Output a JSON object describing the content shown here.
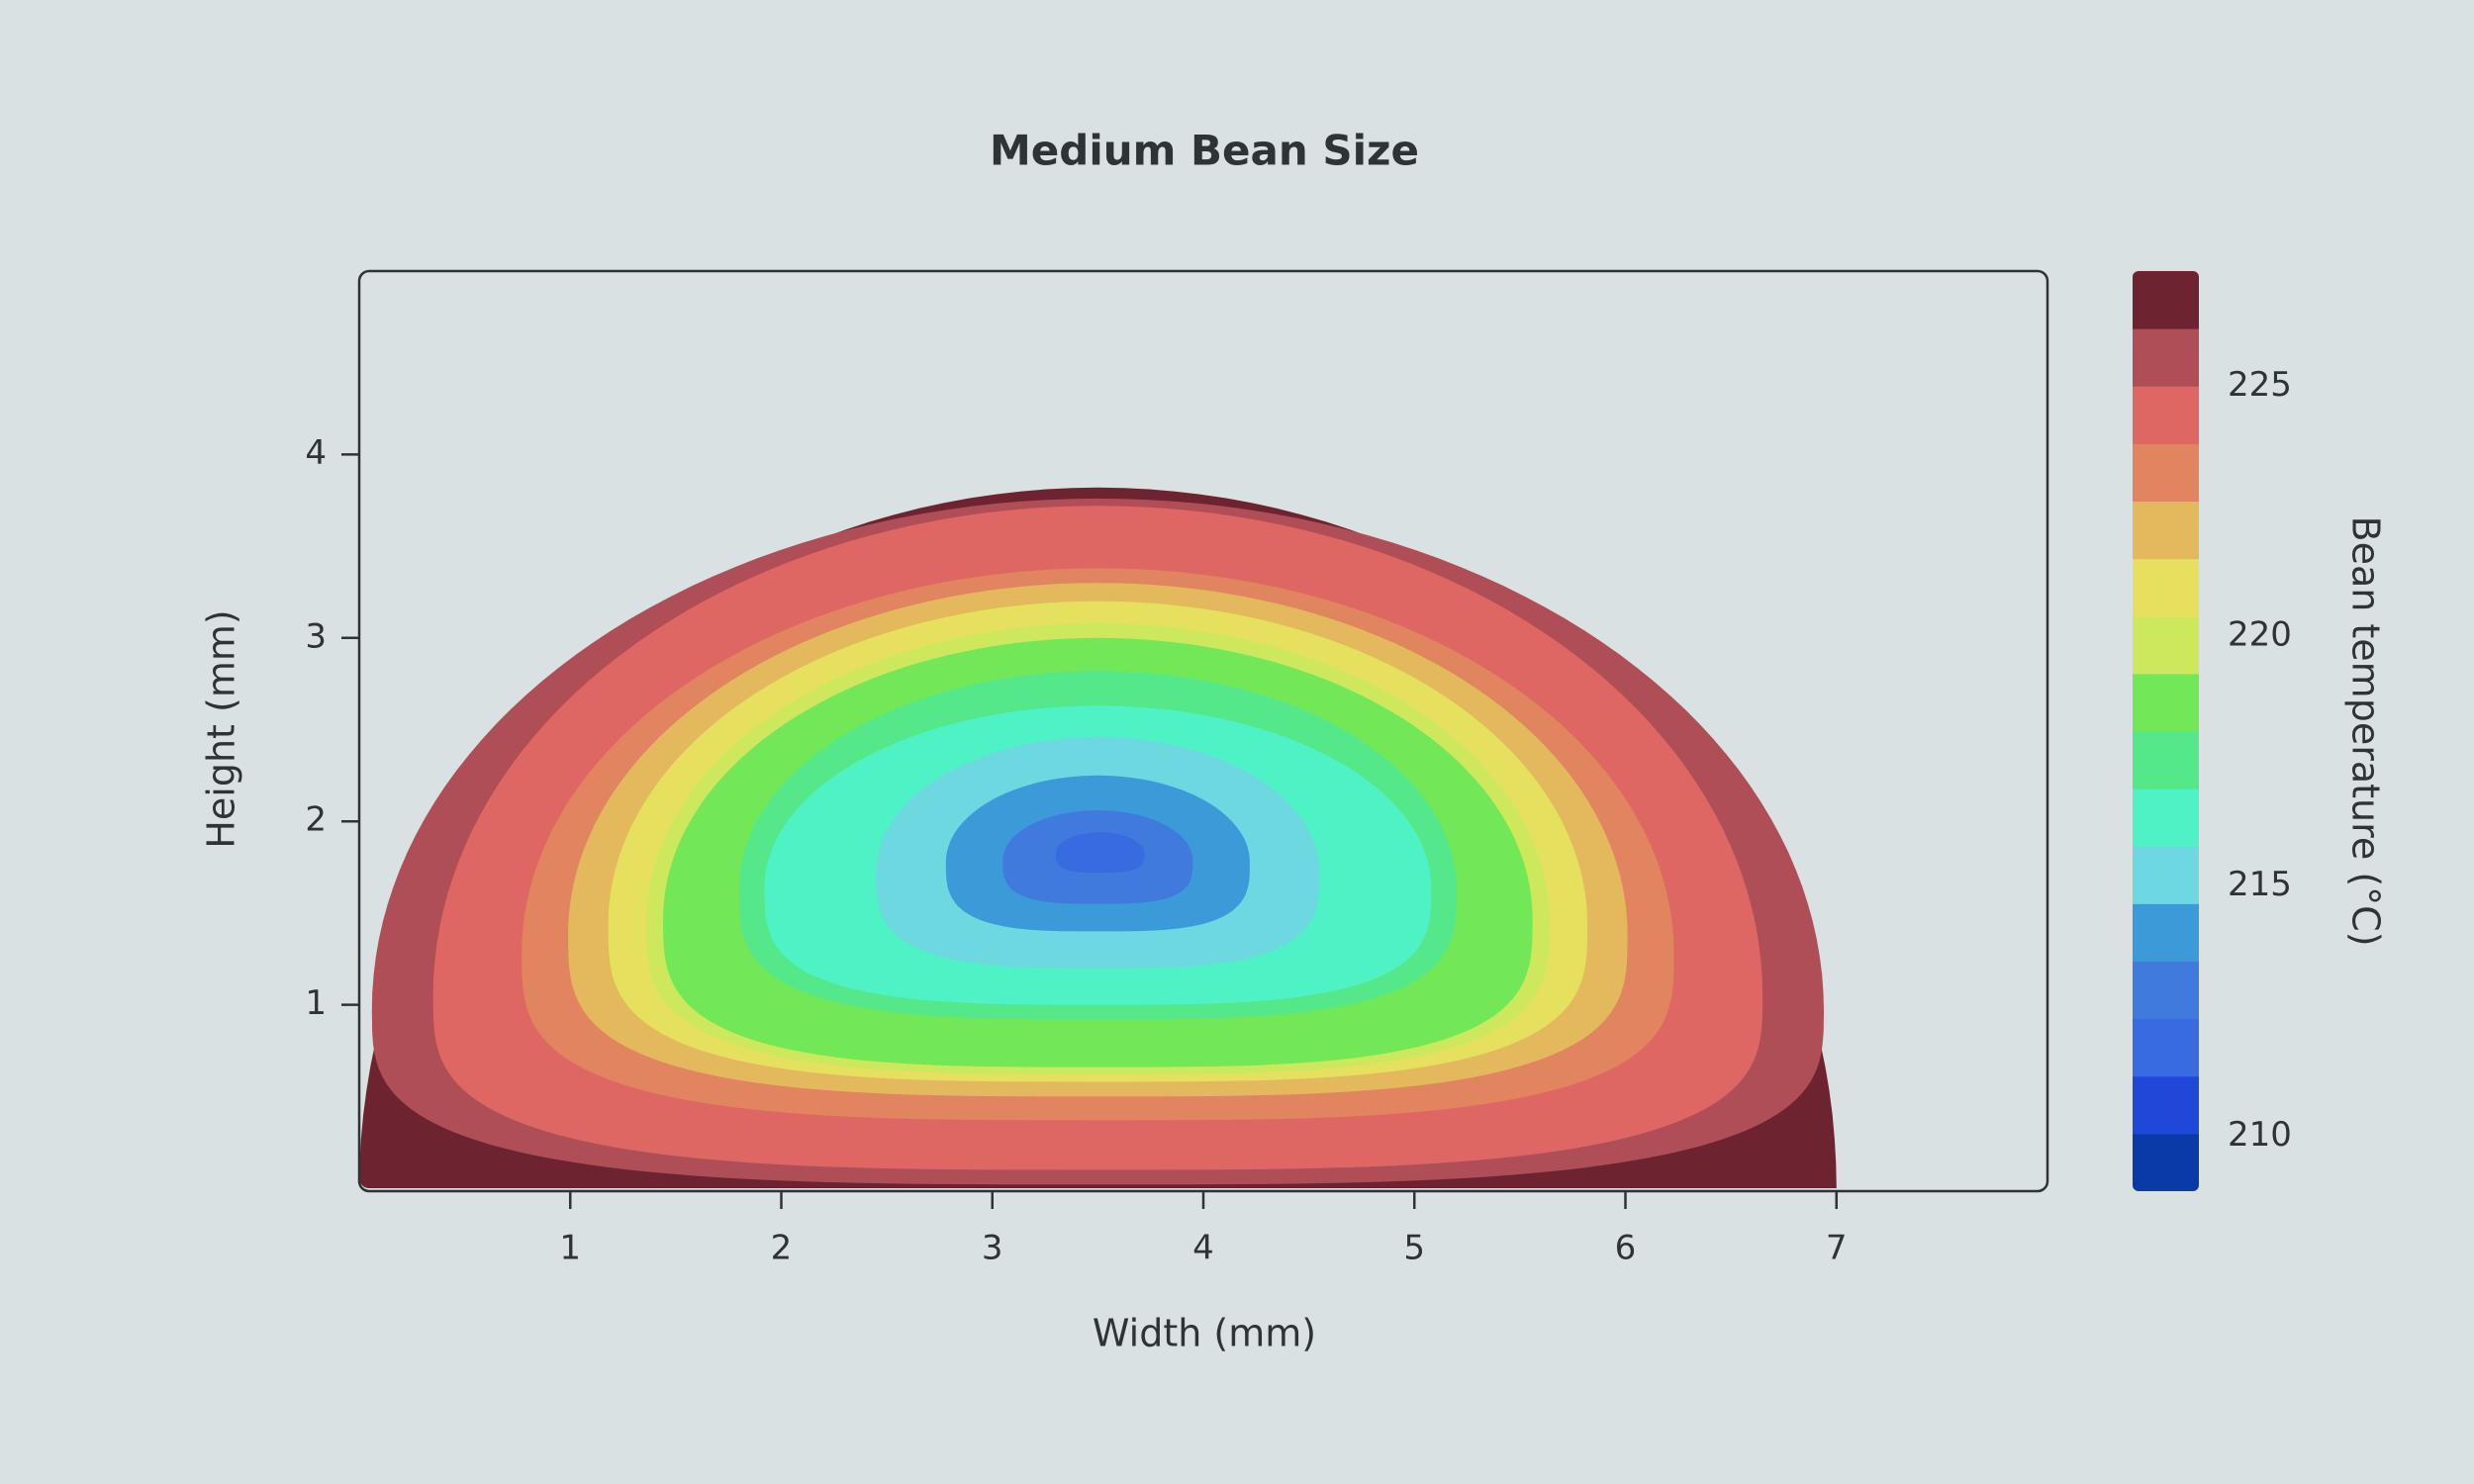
{
  "chart_data": {
    "type": "contour",
    "title": "Medium Bean Size",
    "xlabel": "Width (mm)",
    "ylabel": "Height (mm)",
    "xlim": [
      0,
      8
    ],
    "ylim": [
      0,
      5
    ],
    "xticks": [
      1,
      2,
      3,
      4,
      5,
      6,
      7
    ],
    "yticks": [
      1,
      2,
      3,
      4
    ],
    "colorbar": {
      "label": "Bean temperature (°C)",
      "levels": [
        208.9,
        210.05,
        211.2,
        212.35,
        213.5,
        214.65,
        215.8,
        216.95,
        218.1,
        219.25,
        220.4,
        221.55,
        222.7,
        223.85,
        225.0,
        226.15,
        227.3
      ],
      "colors": [
        "#0a3aa8",
        "#2048d8",
        "#386be0",
        "#3f7adc",
        "#3c9ad8",
        "#6dd8e0",
        "#4ff2c4",
        "#55e88a",
        "#72e858",
        "#cde85c",
        "#e6e05f",
        "#e4b95e",
        "#e0855f",
        "#df6763",
        "#b04e58",
        "#6e2430"
      ],
      "ticks": [
        210,
        215,
        220,
        225
      ]
    },
    "contours": [
      {
        "level": 226.15,
        "x": [
          0,
          7
        ],
        "y": [
          0,
          3.82
        ]
      },
      {
        "level": 225.0,
        "x": [
          0.06,
          6.94
        ],
        "y": [
          0.02,
          3.76
        ]
      },
      {
        "level": 223.85,
        "x": [
          0.35,
          6.65
        ],
        "y": [
          0.1,
          3.72
        ]
      },
      {
        "level": 222.7,
        "x": [
          0.77,
          6.23
        ],
        "y": [
          0.37,
          3.38
        ]
      },
      {
        "level": 221.55,
        "x": [
          0.99,
          6.01
        ],
        "y": [
          0.5,
          3.3
        ]
      },
      {
        "level": 220.4,
        "x": [
          1.18,
          5.82
        ],
        "y": [
          0.58,
          3.2
        ]
      },
      {
        "level": 219.25,
        "x": [
          1.36,
          5.64
        ],
        "y": [
          0.62,
          3.08
        ]
      },
      {
        "level": 218.1,
        "x": [
          1.44,
          5.56
        ],
        "y": [
          0.66,
          3.0
        ]
      },
      {
        "level": 216.95,
        "x": [
          1.8,
          5.2
        ],
        "y": [
          0.92,
          2.82
        ]
      },
      {
        "level": 215.8,
        "x": [
          1.92,
          5.08
        ],
        "y": [
          1.0,
          2.63
        ]
      },
      {
        "level": 214.65,
        "x": [
          2.45,
          4.55
        ],
        "y": [
          1.2,
          2.46
        ]
      },
      {
        "level": 213.5,
        "x": [
          2.78,
          4.22
        ],
        "y": [
          1.4,
          2.25
        ]
      },
      {
        "level": 212.35,
        "x": [
          3.05,
          3.95
        ],
        "y": [
          1.55,
          2.06
        ]
      },
      {
        "level": 211.2,
        "x": [
          3.3,
          3.72
        ],
        "y": [
          1.72,
          1.94
        ]
      }
    ]
  }
}
